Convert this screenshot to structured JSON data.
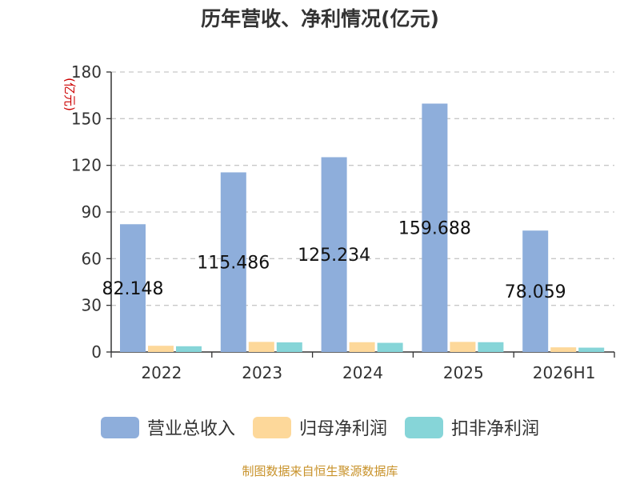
{
  "chart_data": {
    "type": "bar",
    "title": "历年营收、净利情况(亿元)",
    "ylabel": "(亿元)",
    "xlabel": "",
    "ylim": [
      0,
      180
    ],
    "yticks": [
      0,
      30,
      60,
      90,
      120,
      150,
      180
    ],
    "grid": true,
    "legend_position": "bottom",
    "categories": [
      "2022",
      "2023",
      "2024",
      "2025",
      "2026H1"
    ],
    "series": [
      {
        "name": "营业总收入",
        "color": "#8eaedb",
        "values": [
          82.148,
          115.486,
          125.234,
          159.688,
          78.059
        ],
        "labels": [
          "82.148",
          "115.486",
          "125.234",
          "159.688",
          "78.059"
        ]
      },
      {
        "name": "归母净利润",
        "color": "#fdd89a",
        "values": [
          4.0,
          6.5,
          6.3,
          6.5,
          3.0
        ]
      },
      {
        "name": "扣非净利润",
        "color": "#86d5d8",
        "values": [
          3.7,
          6.2,
          5.9,
          6.3,
          2.8
        ]
      }
    ]
  },
  "footer": {
    "source": "制图数据来自恒生聚源数据库"
  }
}
